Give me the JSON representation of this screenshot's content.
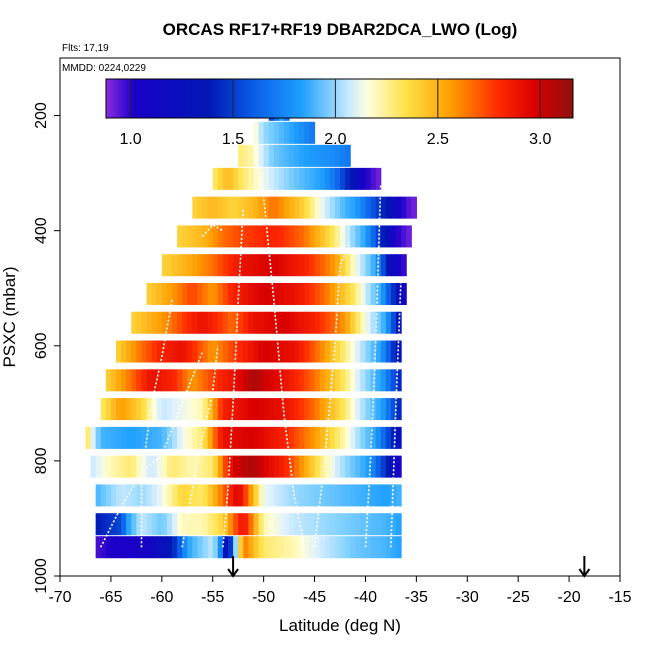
{
  "chart_data": {
    "type": "heatmap",
    "title": "ORCAS RF17+RF19 DBAR2DCA_LWO (Log)",
    "flights_label": "Flts: 17,19",
    "date_label": "MMDD: 0224,0229",
    "xlabel": "Latitude (deg N)",
    "ylabel": "PSXC (mbar)",
    "xlim": [
      -70,
      -15
    ],
    "ylim": [
      1000,
      100
    ],
    "x_ticks": [
      "-70",
      "-65",
      "-60",
      "-55",
      "-50",
      "-45",
      "-40",
      "-35",
      "-30",
      "-25",
      "-20",
      "-15"
    ],
    "x_tick_values": [
      -70,
      -65,
      -60,
      -55,
      -50,
      -45,
      -40,
      -35,
      -30,
      -25,
      -20,
      -15
    ],
    "y_ticks": [
      "200",
      "400",
      "600",
      "800",
      "1000"
    ],
    "y_tick_values": [
      200,
      400,
      600,
      800,
      1000
    ],
    "colorbar": {
      "range": [
        0.88,
        3.16
      ],
      "ticks": [
        "1.0",
        "1.5",
        "2.0",
        "2.5",
        "3.0"
      ],
      "tick_values": [
        1.0,
        1.5,
        2.0,
        2.5,
        3.0
      ]
    },
    "arrow_latitudes": [
      -53,
      -18.5
    ],
    "rows": [
      {
        "p": 190,
        "x0": -49.5,
        "x1": -47.5,
        "pts": [
          [
            -49.5,
            1.6
          ],
          [
            -49,
            1.0
          ],
          [
            -48.5,
            1.8
          ],
          [
            -48,
            1.2
          ],
          [
            -47.5,
            1.6
          ]
        ]
      },
      {
        "p": 230,
        "x0": -51,
        "x1": -45,
        "pts": [
          [
            -51,
            2.1
          ],
          [
            -50,
            1.8
          ],
          [
            -49,
            1.7
          ],
          [
            -47,
            1.5
          ],
          [
            -45,
            1.4
          ]
        ]
      },
      {
        "p": 270,
        "x0": -52.5,
        "x1": -41.5,
        "pts": [
          [
            -52.5,
            2.2
          ],
          [
            -51,
            2.1
          ],
          [
            -49,
            1.7
          ],
          [
            -46,
            1.5
          ],
          [
            -43,
            1.45
          ],
          [
            -41.5,
            1.4
          ]
        ]
      },
      {
        "p": 310,
        "x0": -55,
        "x1": -38.5,
        "pts": [
          [
            -55,
            2.2
          ],
          [
            -53.5,
            2.4
          ],
          [
            -52,
            2.2
          ],
          [
            -50,
            2.0
          ],
          [
            -47,
            1.7
          ],
          [
            -43,
            1.4
          ],
          [
            -40,
            1.0
          ],
          [
            -38.5,
            0.9
          ]
        ]
      },
      {
        "p": 360,
        "x0": -57,
        "x1": -35,
        "pts": [
          [
            -57,
            2.3
          ],
          [
            -55,
            2.4
          ],
          [
            -53,
            2.3
          ],
          [
            -51,
            2.4
          ],
          [
            -49,
            2.6
          ],
          [
            -46,
            2.3
          ],
          [
            -42,
            1.6
          ],
          [
            -38,
            1.2
          ],
          [
            -36,
            0.95
          ],
          [
            -35,
            0.9
          ]
        ]
      },
      {
        "p": 410,
        "x0": -58.5,
        "x1": -35.5,
        "pts": [
          [
            -58.5,
            2.3
          ],
          [
            -56,
            2.4
          ],
          [
            -54,
            2.6
          ],
          [
            -52,
            2.7
          ],
          [
            -49,
            2.8
          ],
          [
            -46,
            2.6
          ],
          [
            -43,
            2.2
          ],
          [
            -40,
            1.5
          ],
          [
            -37,
            1.0
          ],
          [
            -35.5,
            0.9
          ]
        ]
      },
      {
        "p": 460,
        "x0": -60,
        "x1": -36,
        "pts": [
          [
            -60,
            2.3
          ],
          [
            -58,
            2.4
          ],
          [
            -55,
            2.6
          ],
          [
            -52,
            2.9
          ],
          [
            -49,
            3.0
          ],
          [
            -46,
            2.8
          ],
          [
            -43,
            2.5
          ],
          [
            -40,
            1.8
          ],
          [
            -37.5,
            1.1
          ],
          [
            -36,
            0.95
          ]
        ]
      },
      {
        "p": 510,
        "x0": -61.5,
        "x1": -36,
        "pts": [
          [
            -61.5,
            2.3
          ],
          [
            -59,
            2.5
          ],
          [
            -57,
            2.7
          ],
          [
            -55,
            2.5
          ],
          [
            -53,
            2.8
          ],
          [
            -50,
            3.0
          ],
          [
            -47,
            2.9
          ],
          [
            -44,
            2.6
          ],
          [
            -41,
            2.2
          ],
          [
            -38,
            1.4
          ],
          [
            -36,
            1.0
          ]
        ]
      },
      {
        "p": 560,
        "x0": -63,
        "x1": -36.5,
        "pts": [
          [
            -63,
            2.3
          ],
          [
            -60,
            2.5
          ],
          [
            -58,
            2.7
          ],
          [
            -56,
            2.9
          ],
          [
            -53,
            2.6
          ],
          [
            -51,
            2.9
          ],
          [
            -48,
            3.0
          ],
          [
            -45,
            2.8
          ],
          [
            -42,
            2.5
          ],
          [
            -39,
            1.8
          ],
          [
            -36.5,
            1.1
          ]
        ]
      },
      {
        "p": 610,
        "x0": -64.5,
        "x1": -36.5,
        "pts": [
          [
            -64.5,
            2.3
          ],
          [
            -62,
            2.6
          ],
          [
            -60,
            2.8
          ],
          [
            -58,
            2.9
          ],
          [
            -55,
            2.5
          ],
          [
            -53,
            2.7
          ],
          [
            -50,
            3.0
          ],
          [
            -47,
            2.9
          ],
          [
            -44,
            2.5
          ],
          [
            -41,
            2.0
          ],
          [
            -38,
            1.4
          ],
          [
            -36.5,
            1.1
          ]
        ]
      },
      {
        "p": 660,
        "x0": -65.5,
        "x1": -36.5,
        "pts": [
          [
            -65.5,
            2.3
          ],
          [
            -63,
            2.6
          ],
          [
            -61,
            2.9
          ],
          [
            -59,
            2.8
          ],
          [
            -57,
            2.5
          ],
          [
            -54,
            2.8
          ],
          [
            -51,
            3.1
          ],
          [
            -48,
            2.9
          ],
          [
            -45,
            2.6
          ],
          [
            -42,
            2.2
          ],
          [
            -39,
            1.6
          ],
          [
            -36.5,
            1.2
          ]
        ]
      },
      {
        "p": 710,
        "x0": -66,
        "x1": -36.5,
        "pts": [
          [
            -66,
            2.2
          ],
          [
            -64,
            2.5
          ],
          [
            -62,
            2.3
          ],
          [
            -60,
            1.9
          ],
          [
            -58,
            2.0
          ],
          [
            -56,
            2.1
          ],
          [
            -54,
            2.8
          ],
          [
            -51,
            3.0
          ],
          [
            -48,
            2.9
          ],
          [
            -45,
            2.6
          ],
          [
            -42,
            2.2
          ],
          [
            -39,
            1.6
          ],
          [
            -36.5,
            1.2
          ]
        ]
      },
      {
        "p": 760,
        "x0": -67.5,
        "x1": -36.5,
        "pts": [
          [
            -67.5,
            2.3
          ],
          [
            -66,
            1.6
          ],
          [
            -63,
            1.5
          ],
          [
            -60,
            1.6
          ],
          [
            -58,
            2.0
          ],
          [
            -56,
            2.2
          ],
          [
            -54,
            2.9
          ],
          [
            -51,
            3.0
          ],
          [
            -48,
            2.8
          ],
          [
            -45,
            2.5
          ],
          [
            -42,
            2.1
          ],
          [
            -39,
            1.5
          ],
          [
            -36.5,
            1.1
          ]
        ]
      },
      {
        "p": 810,
        "x0": -67,
        "x1": -36.5,
        "pts": [
          [
            -67,
            1.9
          ],
          [
            -65,
            2.1
          ],
          [
            -63,
            2.2
          ],
          [
            -61,
            1.9
          ],
          [
            -59,
            2.2
          ],
          [
            -57,
            2.1
          ],
          [
            -55,
            2.2
          ],
          [
            -53,
            3.0
          ],
          [
            -51,
            3.1
          ],
          [
            -48,
            2.8
          ],
          [
            -45,
            2.3
          ],
          [
            -42,
            1.8
          ],
          [
            -39,
            1.4
          ],
          [
            -36.5,
            1.0
          ]
        ]
      },
      {
        "p": 860,
        "x0": -66.5,
        "x1": -36.5,
        "pts": [
          [
            -66.5,
            1.6
          ],
          [
            -64,
            1.9
          ],
          [
            -62,
            1.8
          ],
          [
            -60,
            2.0
          ],
          [
            -58,
            2.3
          ],
          [
            -56,
            2.2
          ],
          [
            -54,
            2.6
          ],
          [
            -52.5,
            3.0
          ],
          [
            -50,
            2.0
          ],
          [
            -47,
            1.8
          ],
          [
            -44,
            1.7
          ],
          [
            -41,
            1.6
          ],
          [
            -38,
            1.5
          ],
          [
            -36.5,
            1.6
          ]
        ]
      },
      {
        "p": 910,
        "x0": -66.5,
        "x1": -36.5,
        "pts": [
          [
            -66.5,
            1.2
          ],
          [
            -64,
            1.3
          ],
          [
            -62,
            1.9
          ],
          [
            -60,
            1.7
          ],
          [
            -58,
            2.1
          ],
          [
            -56,
            2.1
          ],
          [
            -54,
            2.3
          ],
          [
            -52,
            2.9
          ],
          [
            -50,
            2.1
          ],
          [
            -47,
            1.9
          ],
          [
            -44,
            1.8
          ],
          [
            -41,
            1.7
          ],
          [
            -38,
            1.6
          ],
          [
            -36.5,
            1.5
          ]
        ]
      },
      {
        "p": 950,
        "x0": -66.5,
        "x1": -36.5,
        "pts": [
          [
            -66.5,
            0.95
          ],
          [
            -65,
            1.0
          ],
          [
            -63,
            1.0
          ],
          [
            -61,
            1.05
          ],
          [
            -59,
            1.2
          ],
          [
            -57,
            1.6
          ],
          [
            -55,
            1.9
          ],
          [
            -53.5,
            1.0
          ],
          [
            -52,
            2.6
          ],
          [
            -50,
            2.2
          ],
          [
            -47,
            2.1
          ],
          [
            -44,
            1.9
          ],
          [
            -41,
            1.7
          ],
          [
            -38,
            1.6
          ],
          [
            -36.5,
            1.5
          ]
        ]
      }
    ]
  }
}
